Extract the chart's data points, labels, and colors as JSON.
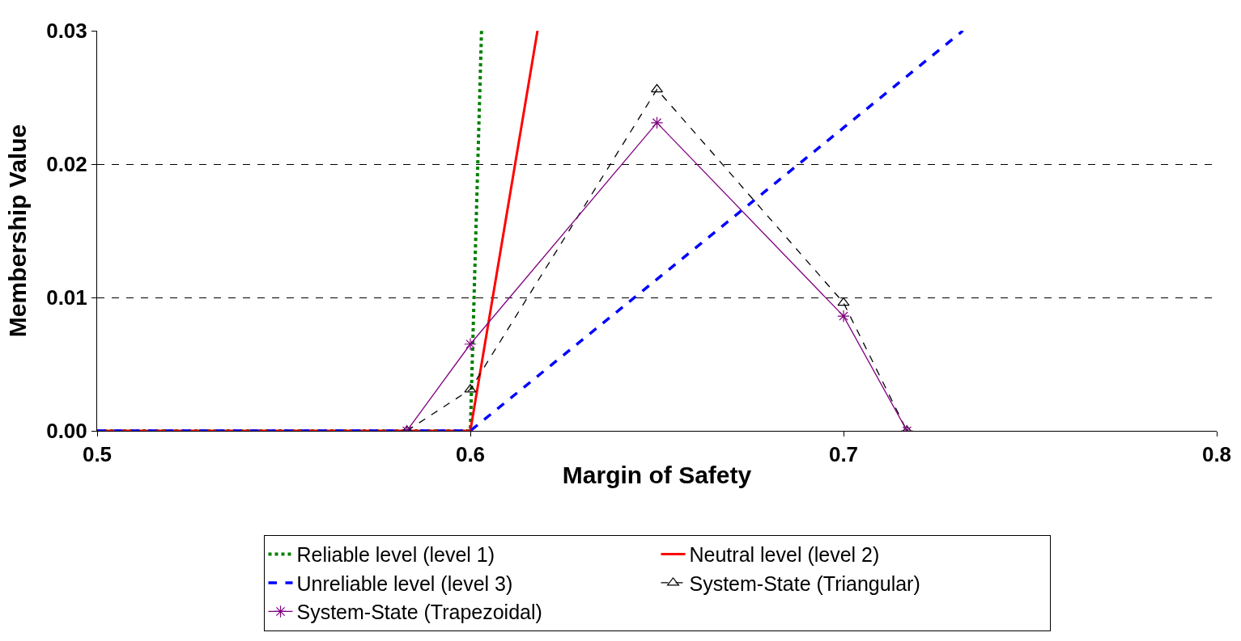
{
  "chart_data": {
    "type": "line",
    "xlabel": "Margin of Safety",
    "ylabel": "Membership Value",
    "series": [
      {
        "name": "Reliable level (level 1)",
        "color": "#008000",
        "line_style": "dotted",
        "marker": "none",
        "x": [
          0.5,
          0.6,
          0.603
        ],
        "values": [
          0,
          0,
          0.03
        ]
      },
      {
        "name": "Neutral level (level 2)",
        "color": "#ff0000",
        "line_style": "solid",
        "marker": "none",
        "x": [
          0.5,
          0.6,
          0.618
        ],
        "values": [
          0,
          0,
          0.03
        ]
      },
      {
        "name": "Unreliable level (level 3)",
        "color": "#0000ff",
        "line_style": "dashed",
        "marker": "none",
        "x": [
          0.5,
          0.6,
          0.732
        ],
        "values": [
          0,
          0,
          0.03
        ]
      },
      {
        "name": "System-State (Triangular)",
        "color": "#000000",
        "line_style": "dashed",
        "marker": "triangle",
        "x": [
          0.583,
          0.6,
          0.65,
          0.7,
          0.717
        ],
        "values": [
          0,
          0.0031,
          0.0256,
          0.0096,
          0
        ]
      },
      {
        "name": "System-State (Trapezoidal)",
        "color": "#800080",
        "line_style": "solid",
        "marker": "cross",
        "x": [
          0.583,
          0.6,
          0.65,
          0.7,
          0.717
        ],
        "values": [
          0,
          0.0065,
          0.0231,
          0.0086,
          0
        ]
      }
    ],
    "xlim": [
      0.5,
      0.8
    ],
    "xticks": [
      0.5,
      0.6,
      0.7,
      0.8
    ],
    "ylim": [
      0,
      0.03
    ],
    "yticks": [
      {
        "value": 0,
        "label": "0.00"
      },
      0.01,
      0.02,
      0.03
    ],
    "grid": "y",
    "legend": "bottom"
  }
}
